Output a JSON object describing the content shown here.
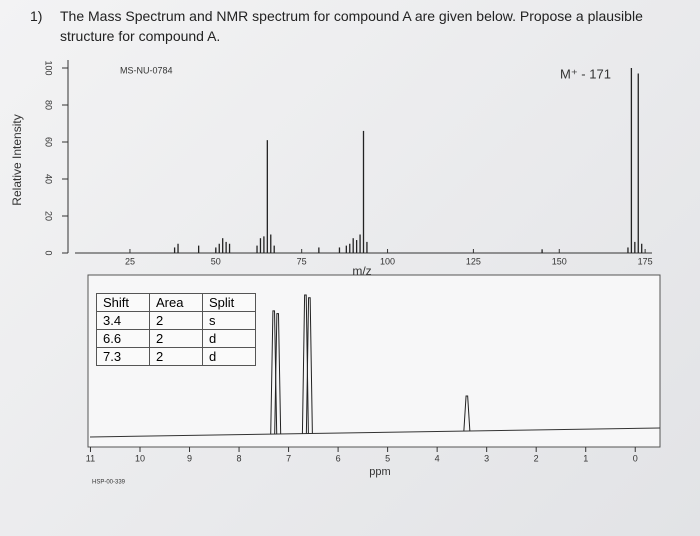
{
  "question": {
    "number": "1)",
    "text": "The Mass Spectrum and NMR spectrum for compound A are given below. Propose a plausible structure for compound A."
  },
  "mass_spectrum": {
    "type": "bar",
    "code": "MS-NU-0784",
    "annotation": "M⁺ - 171",
    "y_label": "Relative Intensity",
    "x_label": "m/z",
    "xlim": [
      9,
      177
    ],
    "xticks": [
      25,
      50,
      75,
      100,
      125,
      150,
      175
    ],
    "ylim": [
      0,
      100
    ],
    "yticks": [
      0,
      20,
      40,
      60,
      80,
      100
    ],
    "x": [
      38,
      39,
      45,
      50,
      51,
      52,
      53,
      54,
      62,
      63,
      64,
      65,
      66,
      67,
      80,
      86,
      88,
      89,
      90,
      91,
      92,
      93,
      94,
      145,
      170,
      171,
      172,
      173,
      174
    ],
    "values": [
      3,
      5,
      4,
      3,
      5,
      8,
      6,
      5,
      4,
      8,
      9,
      61,
      10,
      4,
      3,
      3,
      4,
      5,
      8,
      7,
      10,
      66,
      6,
      2,
      3,
      100,
      6,
      97,
      5
    ],
    "color": "#222222"
  },
  "nmr": {
    "code": "HSP-00-339",
    "x_label": "ppm",
    "xlim": [
      11.05,
      -0.5
    ],
    "xticks": [
      11,
      10,
      9,
      8,
      7,
      6,
      5,
      4,
      3,
      2,
      1,
      0
    ],
    "peaks": {
      "ppm": [
        7.3,
        7.22,
        6.66,
        6.58,
        3.4
      ],
      "intensity": [
        88,
        86,
        99,
        97,
        25
      ]
    },
    "table": {
      "header": [
        "Shift",
        "Area",
        "Split"
      ],
      "rows": [
        [
          "3.4",
          "2",
          "s"
        ],
        [
          "6.6",
          "2",
          "d"
        ],
        [
          "7.3",
          "2",
          "d"
        ]
      ]
    }
  }
}
